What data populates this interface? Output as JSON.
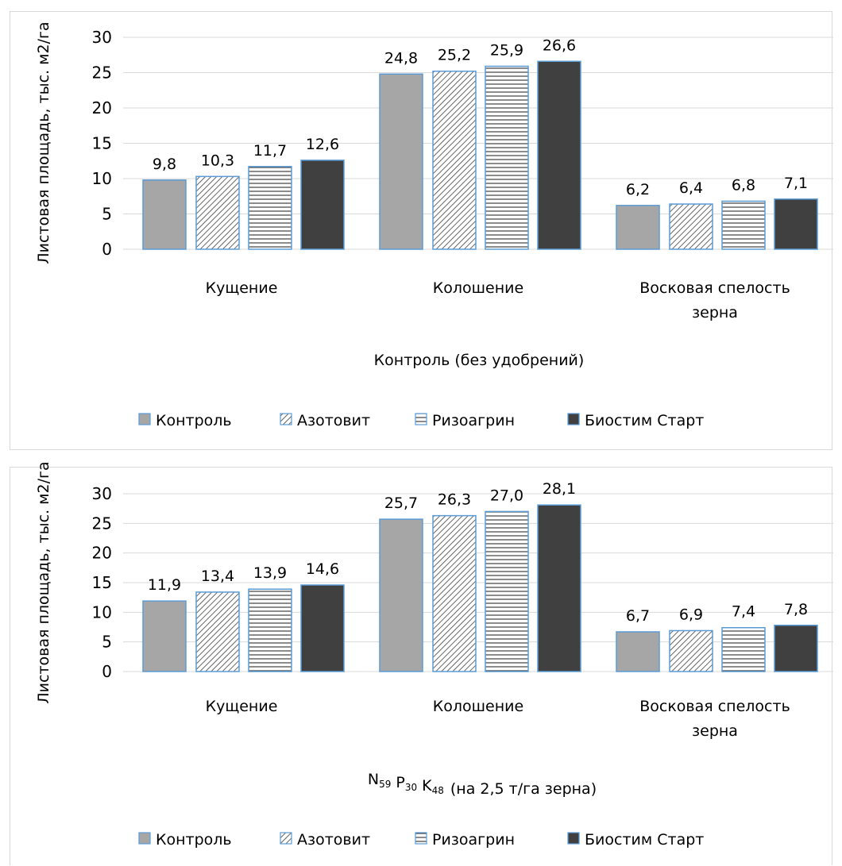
{
  "chart_data": [
    {
      "type": "bar",
      "categories": [
        "Кущение",
        "Колошение",
        "Восковая спелость зерна"
      ],
      "category_lines": [
        [
          "Кущение"
        ],
        [
          "Колошение"
        ],
        [
          "Восковая спелость",
          "зерна"
        ]
      ],
      "series": [
        {
          "name": "Контроль",
          "values": [
            9.8,
            24.8,
            6.2
          ],
          "labels": [
            "9,8",
            "24,8",
            "6,2"
          ]
        },
        {
          "name": "Азотовит",
          "values": [
            10.3,
            25.2,
            6.4
          ],
          "labels": [
            "10,3",
            "25,2",
            "6,4"
          ]
        },
        {
          "name": "Ризоагрин",
          "values": [
            11.7,
            25.9,
            6.8
          ],
          "labels": [
            "11,7",
            "25,9",
            "6,8"
          ]
        },
        {
          "name": "Биостим Старт",
          "values": [
            12.6,
            26.6,
            7.1
          ],
          "labels": [
            "12,6",
            "26,6",
            "7,1"
          ]
        }
      ],
      "ylabel": "Листовая площадь, тыс. м2/га",
      "xlabel": "Контроль (без удобрений)",
      "ylim": [
        0,
        30
      ],
      "yticks": [
        "0",
        "5",
        "10",
        "15",
        "20",
        "25",
        "30"
      ],
      "grid": true,
      "legend": "bottom"
    },
    {
      "type": "bar",
      "categories": [
        "Кущение",
        "Колошение",
        "Восковая спелость зерна"
      ],
      "category_lines": [
        [
          "Кущение"
        ],
        [
          "Колошение"
        ],
        [
          "Восковая спелость",
          "зерна"
        ]
      ],
      "series": [
        {
          "name": "Контроль",
          "values": [
            11.9,
            25.7,
            6.7
          ],
          "labels": [
            "11,9",
            "25,7",
            "6,7"
          ]
        },
        {
          "name": "Азотовит",
          "values": [
            13.4,
            26.3,
            6.9
          ],
          "labels": [
            "13,4",
            "26,3",
            "6,9"
          ]
        },
        {
          "name": "Ризоагрин",
          "values": [
            13.9,
            27.0,
            7.4
          ],
          "labels": [
            "13,9",
            "27,0",
            "7,4"
          ]
        },
        {
          "name": "Биостим Старт",
          "values": [
            14.6,
            28.1,
            7.8
          ],
          "labels": [
            "14,6",
            "28,1",
            "7,8"
          ]
        }
      ],
      "ylabel": "Листовая площадь, тыс. м2/га",
      "xlabel_parts": [
        [
          "N",
          "59"
        ],
        [
          "P",
          "30"
        ],
        [
          "K",
          "48"
        ]
      ],
      "xlabel_suffix": "(на 2,5 т/га зерна)",
      "ylim": [
        0,
        30
      ],
      "yticks": [
        "0",
        "5",
        "10",
        "15",
        "20",
        "25",
        "30"
      ],
      "grid": true,
      "legend": "bottom"
    }
  ],
  "colors": {
    "grid": "#d9d9d9",
    "axis": "#d9d9d9",
    "bar_outline": "#5b9bd5",
    "series_fill": [
      "#a6a6a6",
      "#ffffff",
      "#ffffff",
      "#404040"
    ],
    "pattern_ink": "#404040"
  },
  "series_patterns": [
    "solid",
    "diagonal-hatch",
    "horizontal-lines",
    "solid"
  ]
}
